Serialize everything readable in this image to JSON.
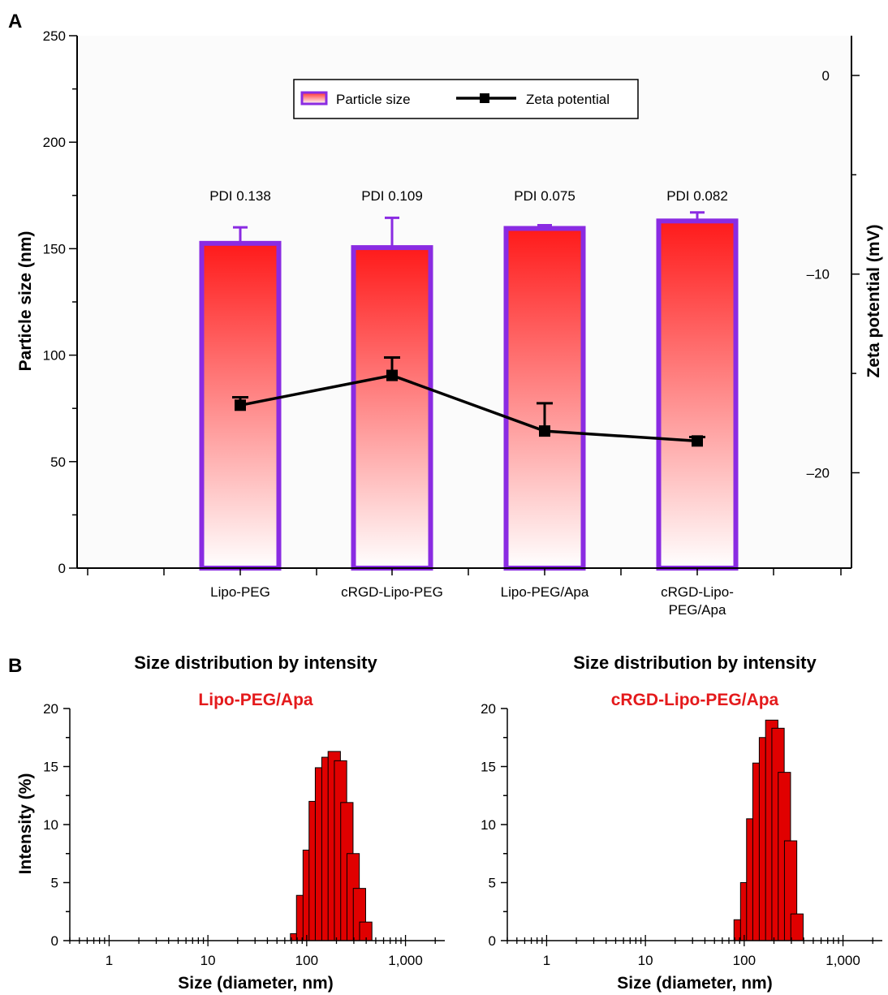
{
  "colors": {
    "bar_top": "#ff1a1a",
    "bar_bottom": "#ffffff",
    "bar_border": "#8a2be2",
    "line": "#000000",
    "hist_fill": "#e00000",
    "highlight_text": "#e41a1c"
  },
  "panels": {
    "a_label": "A",
    "b_label": "B"
  },
  "chart_data": [
    {
      "type": "bar",
      "panel": "A",
      "categories": [
        "Lipo-PEG",
        "cRGD-Lipo-PEG",
        "Lipo-PEG/Apa",
        "cRGD-Lipo-\nPEG/Apa"
      ],
      "category_highlight": [
        false,
        false,
        true,
        true
      ],
      "ylabel": "Particle size (nm)",
      "y2label": "Zeta potential (mV)",
      "ylim": [
        0,
        250
      ],
      "yticks": [
        0,
        50,
        100,
        150,
        200,
        250
      ],
      "y2lim": [
        -24.8,
        2
      ],
      "y2ticks": [
        0,
        -10,
        -20
      ],
      "y2tick_labels": [
        "0",
        "–10",
        "–20"
      ],
      "legend_position": "top-center",
      "grid": false,
      "series": [
        {
          "name": "Particle size",
          "type": "bar",
          "axis": "left",
          "values": [
            152.5,
            150.5,
            159.5,
            163
          ],
          "errors": [
            7.5,
            14,
            1.5,
            4
          ]
        },
        {
          "name": "Zeta potential",
          "type": "line",
          "axis": "right",
          "values": [
            -16.6,
            -15.1,
            -17.9,
            -18.4
          ],
          "errors": [
            0.4,
            0.9,
            1.4,
            0.2
          ]
        }
      ],
      "annotations": [
        "PDI 0.138",
        "PDI 0.109",
        "PDI 0.075",
        "PDI 0.082"
      ]
    },
    {
      "type": "bar",
      "panel": "B-left",
      "title": "Size distribution by intensity",
      "subtitle": "Lipo-PEG/Apa",
      "xlabel": "Size (diameter, nm)",
      "ylabel": "Intensity (%)",
      "xscale": "log",
      "xlim": [
        0.4,
        2500
      ],
      "xticks": [
        1,
        10,
        100,
        1000
      ],
      "xtick_labels": [
        "1",
        "10",
        "100",
        "1,000"
      ],
      "ylim": [
        0,
        20
      ],
      "yticks": [
        0,
        5,
        10,
        15,
        20
      ],
      "bin_centers": [
        79,
        91,
        106,
        122,
        141,
        164,
        190,
        220,
        255,
        295,
        342,
        396
      ],
      "values": [
        0.6,
        3.9,
        7.8,
        12.0,
        14.9,
        15.8,
        16.3,
        15.5,
        11.9,
        7.5,
        4.5,
        1.6
      ]
    },
    {
      "type": "bar",
      "panel": "B-right",
      "title": "Size distribution by intensity",
      "subtitle": "cRGD-Lipo-PEG/Apa",
      "xlabel": "Size (diameter, nm)",
      "ylabel": "",
      "xscale": "log",
      "xlim": [
        0.4,
        2500
      ],
      "xticks": [
        1,
        10,
        100,
        1000
      ],
      "xtick_labels": [
        "1",
        "10",
        "100",
        "1,000"
      ],
      "ylim": [
        0,
        20
      ],
      "yticks": [
        0,
        5,
        10,
        15,
        20
      ],
      "bin_centers": [
        91,
        106,
        122,
        141,
        164,
        190,
        220,
        255,
        295,
        342
      ],
      "values": [
        1.8,
        5.0,
        10.5,
        15.3,
        17.5,
        19.0,
        18.3,
        14.5,
        8.6,
        2.3
      ]
    }
  ]
}
